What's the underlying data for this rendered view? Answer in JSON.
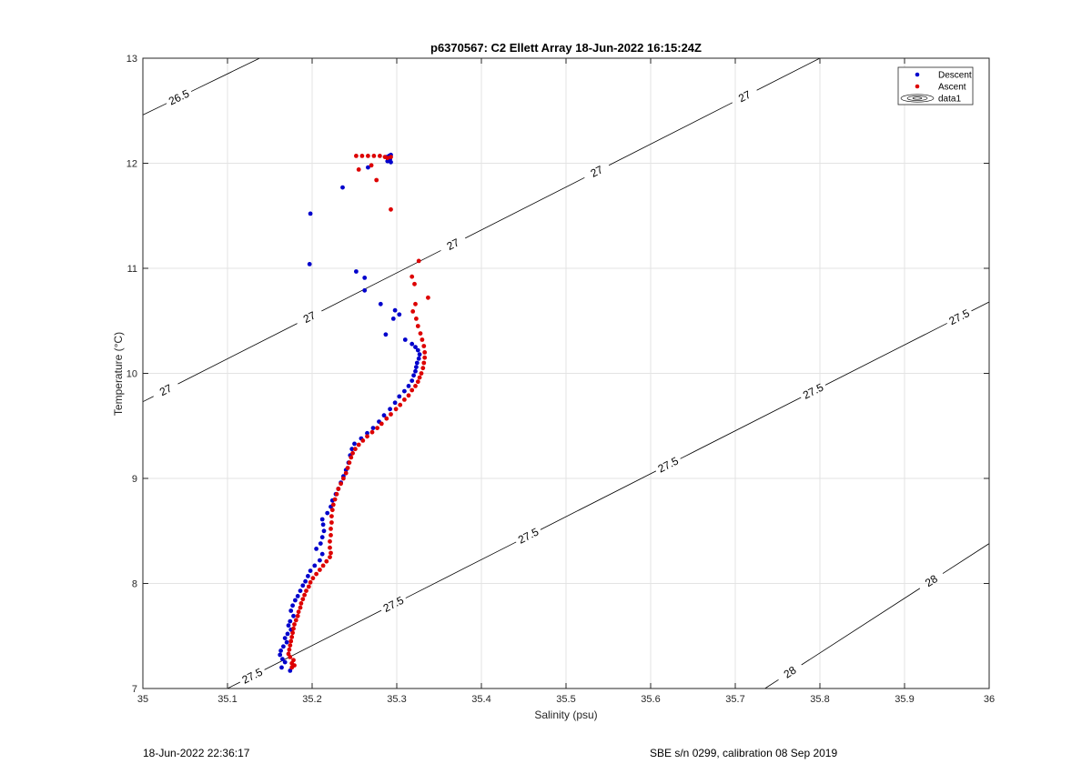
{
  "footer": {
    "timestamp": "18-Jun-2022 22:36:17",
    "calibration": "SBE s/n 0299, calibration 08 Sep 2019"
  },
  "chart_data": {
    "type": "scatter",
    "title": "p6370567: C2 Ellett Array 18-Jun-2022 16:15:24Z",
    "xlabel": "Salinity (psu)",
    "ylabel": "Temperature (°C)",
    "xlim": [
      35,
      36
    ],
    "ylim": [
      7,
      13
    ],
    "xticks": [
      "35",
      "35.1",
      "35.2",
      "35.3",
      "35.4",
      "35.5",
      "35.6",
      "35.7",
      "35.8",
      "35.9",
      "36"
    ],
    "yticks": [
      "7",
      "8",
      "9",
      "10",
      "11",
      "12",
      "13"
    ],
    "grid": true,
    "legend_position": "top-right",
    "legend": [
      "Descent",
      "Ascent",
      "data1"
    ],
    "colors": {
      "Descent": "#0000cc",
      "Ascent": "#dd0000",
      "contour": "#000000",
      "grid": "#e3e3e3"
    },
    "contours": [
      {
        "level": "26.5",
        "points": [
          [
            35,
            12.46
          ],
          [
            35.138,
            13
          ]
        ],
        "labels": [
          [
            35.043,
            12.62
          ]
        ]
      },
      {
        "level": "27",
        "points": [
          [
            35,
            9.73
          ],
          [
            35.8,
            13
          ]
        ],
        "labels": [
          [
            35.027,
            9.84
          ],
          [
            35.197,
            10.53
          ],
          [
            35.367,
            11.22
          ],
          [
            35.537,
            11.91
          ],
          [
            35.712,
            12.62
          ]
        ]
      },
      {
        "level": "27.5",
        "points": [
          [
            35.1,
            7
          ],
          [
            36,
            10.68
          ]
        ],
        "labels": [
          [
            35.128,
            7.14
          ],
          [
            35.295,
            7.82
          ],
          [
            35.455,
            8.46
          ],
          [
            35.62,
            9.14
          ],
          [
            35.792,
            9.83
          ],
          [
            35.965,
            10.53
          ]
        ]
      },
      {
        "level": "28",
        "points": [
          [
            35.735,
            7
          ],
          [
            36,
            8.38
          ]
        ],
        "labels": [
          [
            35.765,
            7.15
          ],
          [
            35.932,
            8.02
          ]
        ]
      }
    ],
    "series": [
      {
        "name": "Descent",
        "points": [
          [
            35.293,
            12.08
          ],
          [
            35.291,
            12.07
          ],
          [
            35.288,
            12.06
          ],
          [
            35.292,
            12.04
          ],
          [
            35.293,
            12.01
          ],
          [
            35.289,
            12.02
          ],
          [
            35.236,
            11.77
          ],
          [
            35.266,
            11.96
          ],
          [
            35.198,
            11.52
          ],
          [
            35.197,
            11.04
          ],
          [
            35.252,
            10.97
          ],
          [
            35.262,
            10.91
          ],
          [
            35.262,
            10.79
          ],
          [
            35.281,
            10.66
          ],
          [
            35.298,
            10.6
          ],
          [
            35.303,
            10.56
          ],
          [
            35.296,
            10.52
          ],
          [
            35.287,
            10.37
          ],
          [
            35.31,
            10.32
          ],
          [
            35.318,
            10.28
          ],
          [
            35.322,
            10.25
          ],
          [
            35.325,
            10.22
          ],
          [
            35.327,
            10.18
          ],
          [
            35.326,
            10.14
          ],
          [
            35.324,
            10.1
          ],
          [
            35.323,
            10.06
          ],
          [
            35.322,
            10.02
          ],
          [
            35.32,
            9.98
          ],
          [
            35.318,
            9.93
          ],
          [
            35.314,
            9.88
          ],
          [
            35.309,
            9.83
          ],
          [
            35.303,
            9.78
          ],
          [
            35.298,
            9.72
          ],
          [
            35.292,
            9.66
          ],
          [
            35.285,
            9.6
          ],
          [
            35.279,
            9.54
          ],
          [
            35.272,
            9.48
          ],
          [
            35.265,
            9.43
          ],
          [
            35.258,
            9.38
          ],
          [
            35.25,
            9.33
          ],
          [
            35.247,
            9.28
          ],
          [
            35.245,
            9.22
          ],
          [
            35.243,
            9.15
          ],
          [
            35.24,
            9.08
          ],
          [
            35.237,
            9.02
          ],
          [
            35.234,
            8.96
          ],
          [
            35.231,
            8.9
          ],
          [
            35.228,
            8.85
          ],
          [
            35.224,
            8.79
          ],
          [
            35.222,
            8.73
          ],
          [
            35.218,
            8.67
          ],
          [
            35.212,
            8.61
          ],
          [
            35.213,
            8.56
          ],
          [
            35.214,
            8.5
          ],
          [
            35.212,
            8.44
          ],
          [
            35.21,
            8.38
          ],
          [
            35.205,
            8.33
          ],
          [
            35.212,
            8.28
          ],
          [
            35.209,
            8.22
          ],
          [
            35.203,
            8.17
          ],
          [
            35.198,
            8.12
          ],
          [
            35.195,
            8.07
          ],
          [
            35.192,
            8.02
          ],
          [
            35.189,
            7.98
          ],
          [
            35.186,
            7.93
          ],
          [
            35.183,
            7.88
          ],
          [
            35.18,
            7.84
          ],
          [
            35.177,
            7.79
          ],
          [
            35.175,
            7.74
          ],
          [
            35.178,
            7.69
          ],
          [
            35.174,
            7.64
          ],
          [
            35.172,
            7.6
          ],
          [
            35.175,
            7.56
          ],
          [
            35.171,
            7.52
          ],
          [
            35.168,
            7.48
          ],
          [
            35.17,
            7.44
          ],
          [
            35.166,
            7.4
          ],
          [
            35.163,
            7.36
          ],
          [
            35.162,
            7.32
          ],
          [
            35.165,
            7.28
          ],
          [
            35.168,
            7.25
          ],
          [
            35.164,
            7.2
          ],
          [
            35.174,
            7.17
          ]
        ]
      },
      {
        "name": "Ascent",
        "points": [
          [
            35.252,
            12.07
          ],
          [
            35.259,
            12.07
          ],
          [
            35.266,
            12.07
          ],
          [
            35.273,
            12.07
          ],
          [
            35.28,
            12.07
          ],
          [
            35.286,
            12.06
          ],
          [
            35.289,
            12.05
          ],
          [
            35.293,
            12.06
          ],
          [
            35.27,
            11.98
          ],
          [
            35.255,
            11.94
          ],
          [
            35.276,
            11.84
          ],
          [
            35.293,
            11.56
          ],
          [
            35.326,
            11.07
          ],
          [
            35.318,
            10.92
          ],
          [
            35.321,
            10.85
          ],
          [
            35.337,
            10.72
          ],
          [
            35.322,
            10.66
          ],
          [
            35.319,
            10.59
          ],
          [
            35.323,
            10.52
          ],
          [
            35.325,
            10.45
          ],
          [
            35.328,
            10.38
          ],
          [
            35.33,
            10.32
          ],
          [
            35.332,
            10.26
          ],
          [
            35.333,
            10.2
          ],
          [
            35.333,
            10.15
          ],
          [
            35.332,
            10.1
          ],
          [
            35.331,
            10.05
          ],
          [
            35.329,
            10.0
          ],
          [
            35.327,
            9.96
          ],
          [
            35.325,
            9.92
          ],
          [
            35.322,
            9.88
          ],
          [
            35.318,
            9.84
          ],
          [
            35.314,
            9.79
          ],
          [
            35.309,
            9.75
          ],
          [
            35.304,
            9.7
          ],
          [
            35.299,
            9.66
          ],
          [
            35.293,
            9.61
          ],
          [
            35.288,
            9.57
          ],
          [
            35.282,
            9.52
          ],
          [
            35.277,
            9.48
          ],
          [
            35.271,
            9.44
          ],
          [
            35.265,
            9.4
          ],
          [
            35.26,
            9.36
          ],
          [
            35.255,
            9.32
          ],
          [
            35.251,
            9.28
          ],
          [
            35.248,
            9.24
          ],
          [
            35.246,
            9.2
          ],
          [
            35.244,
            9.15
          ],
          [
            35.242,
            9.1
          ],
          [
            35.24,
            9.05
          ],
          [
            35.237,
            9.0
          ],
          [
            35.234,
            8.95
          ],
          [
            35.231,
            8.9
          ],
          [
            35.229,
            8.85
          ],
          [
            35.227,
            8.8
          ],
          [
            35.225,
            8.75
          ],
          [
            35.224,
            8.7
          ],
          [
            35.223,
            8.64
          ],
          [
            35.223,
            8.58
          ],
          [
            35.222,
            8.52
          ],
          [
            35.222,
            8.46
          ],
          [
            35.221,
            8.4
          ],
          [
            35.221,
            8.34
          ],
          [
            35.222,
            8.29
          ],
          [
            35.221,
            8.25
          ],
          [
            35.217,
            8.21
          ],
          [
            35.213,
            8.17
          ],
          [
            35.209,
            8.13
          ],
          [
            35.205,
            8.09
          ],
          [
            35.201,
            8.05
          ],
          [
            35.198,
            8.01
          ],
          [
            35.196,
            7.97
          ],
          [
            35.193,
            7.93
          ],
          [
            35.191,
            7.89
          ],
          [
            35.189,
            7.85
          ],
          [
            35.187,
            7.81
          ],
          [
            35.186,
            7.77
          ],
          [
            35.184,
            7.73
          ],
          [
            35.183,
            7.69
          ],
          [
            35.181,
            7.65
          ],
          [
            35.179,
            7.61
          ],
          [
            35.178,
            7.57
          ],
          [
            35.177,
            7.53
          ],
          [
            35.176,
            7.49
          ],
          [
            35.175,
            7.45
          ],
          [
            35.174,
            7.41
          ],
          [
            35.173,
            7.37
          ],
          [
            35.172,
            7.33
          ],
          [
            35.174,
            7.3
          ],
          [
            35.178,
            7.27
          ],
          [
            35.176,
            7.24
          ],
          [
            35.179,
            7.22
          ],
          [
            35.176,
            7.2
          ]
        ]
      }
    ]
  }
}
